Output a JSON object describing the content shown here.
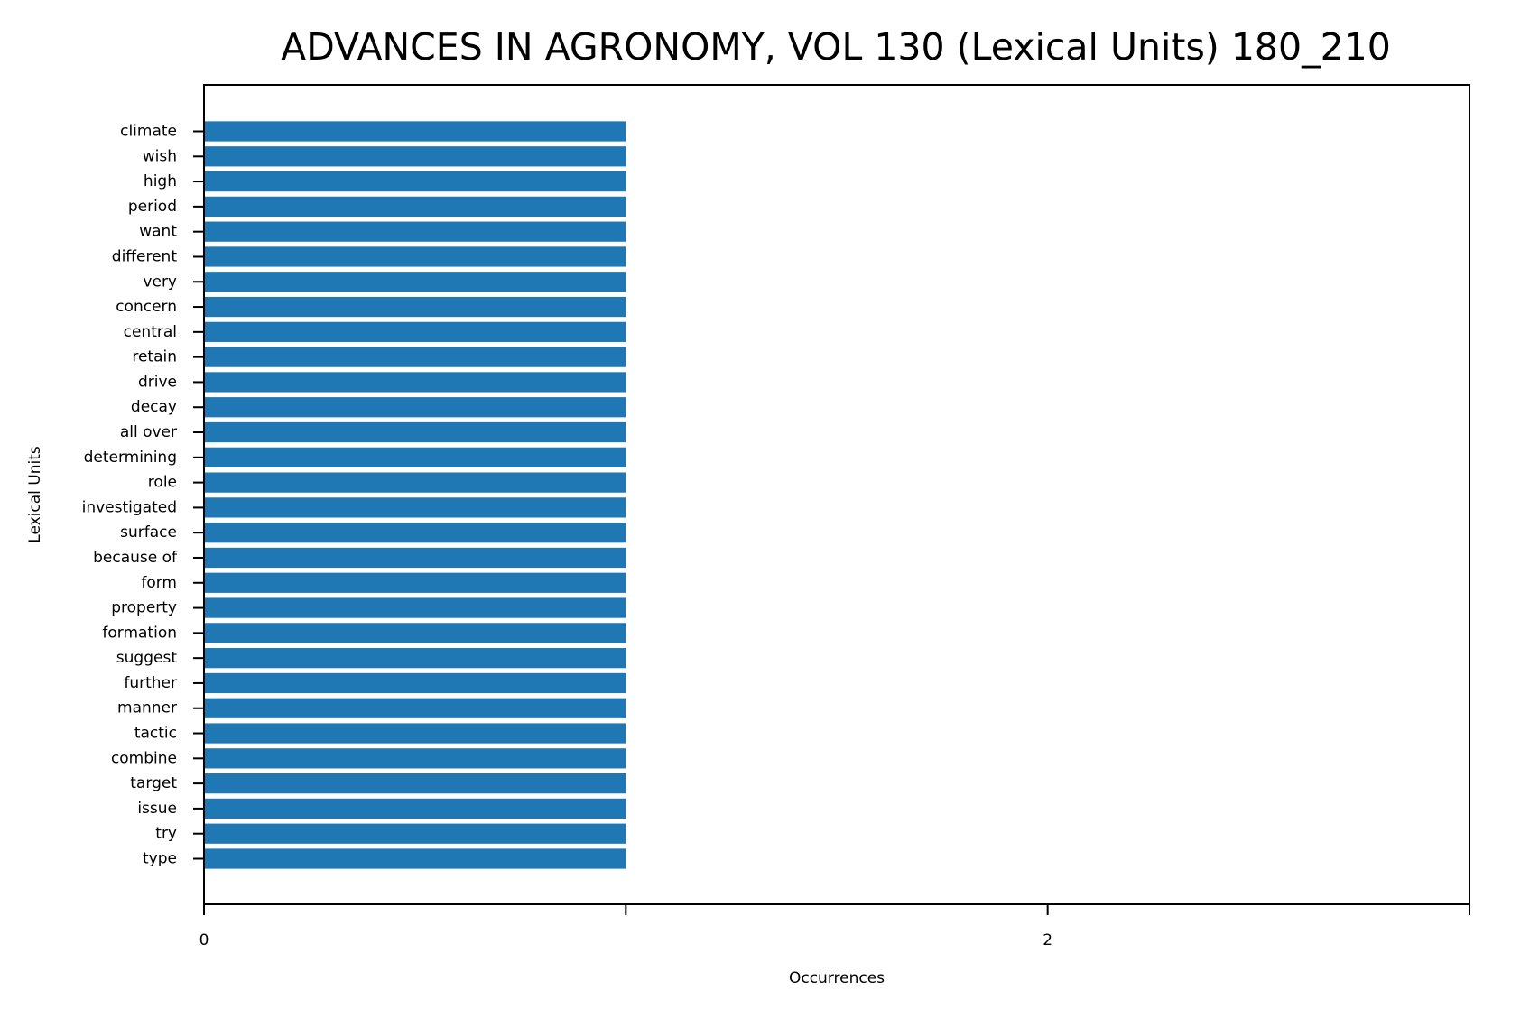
{
  "chart_data": {
    "type": "bar",
    "orientation": "horizontal",
    "title": "ADVANCES IN AGRONOMY, VOL 130 (Lexical Units) 180_210",
    "xlabel": "Occurrences",
    "ylabel": "Lexical Units",
    "xlim": [
      0,
      3
    ],
    "x_ticks": [
      0,
      1,
      2,
      3
    ],
    "x_tick_labels": [
      "0",
      "",
      "2",
      ""
    ],
    "grid": false,
    "bar_color": "#1f77b4",
    "categories": [
      "climate",
      "wish",
      "high",
      "period",
      "want",
      "different",
      "very",
      "concern",
      "central",
      "retain",
      "drive",
      "decay",
      "all over",
      "determining",
      "role",
      "investigated",
      "surface",
      "because of",
      "form",
      "property",
      "formation",
      "suggest",
      "further",
      "manner",
      "tactic",
      "combine",
      "target",
      "issue",
      "try",
      "type"
    ],
    "values": [
      1,
      1,
      1,
      1,
      1,
      1,
      1,
      1,
      1,
      1,
      1,
      1,
      1,
      1,
      1,
      1,
      1,
      1,
      1,
      1,
      1,
      1,
      1,
      1,
      1,
      1,
      1,
      1,
      1,
      1
    ]
  }
}
